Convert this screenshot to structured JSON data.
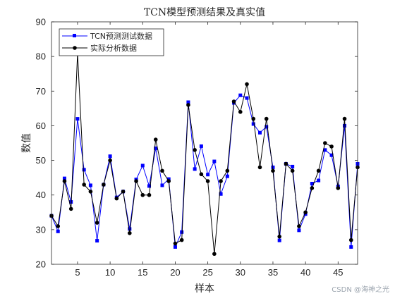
{
  "chart_data": {
    "type": "line",
    "title": "TCN模型预测结果及真实值",
    "xlabel": "样本",
    "ylabel": "数值",
    "xlim": [
      1,
      48
    ],
    "ylim": [
      20,
      90
    ],
    "xticks": [
      5,
      10,
      15,
      20,
      25,
      30,
      35,
      40,
      45
    ],
    "yticks": [
      20,
      30,
      40,
      50,
      60,
      70,
      80,
      90
    ],
    "legend_position": "top-left",
    "x": [
      1,
      2,
      3,
      4,
      5,
      6,
      7,
      8,
      9,
      10,
      11,
      12,
      13,
      14,
      15,
      16,
      17,
      18,
      19,
      20,
      21,
      22,
      23,
      24,
      25,
      26,
      27,
      28,
      29,
      30,
      31,
      32,
      33,
      34,
      35,
      36,
      37,
      38,
      39,
      40,
      41,
      42,
      43,
      44,
      45,
      46,
      47,
      48
    ],
    "series": [
      {
        "name": "TCN预测测试数据",
        "color": "#0000ff",
        "marker": "square",
        "values": [
          34,
          29.5,
          44.8,
          38,
          62,
          47.3,
          42.8,
          26.8,
          43,
          51.2,
          39.3,
          41,
          30.2,
          44.5,
          48.5,
          42.6,
          53.5,
          42.8,
          44.6,
          25,
          29.3,
          66.8,
          47.5,
          54.1,
          45.9,
          49.7,
          40.3,
          45.4,
          66.6,
          68.8,
          68,
          60.5,
          58,
          59.7,
          48,
          26.9,
          49,
          48.2,
          29.8,
          34.5,
          43.3,
          44.2,
          53,
          51.5,
          42.5,
          60,
          25,
          49
        ]
      },
      {
        "name": "实际分析数据",
        "color": "#000000",
        "marker": "circle",
        "values": [
          34,
          31,
          44,
          36,
          81,
          43,
          41,
          32,
          43,
          50,
          39,
          41,
          29,
          44,
          40,
          40,
          56,
          47,
          44,
          26,
          27,
          66,
          53,
          46,
          44,
          23,
          44,
          47,
          67,
          64,
          72,
          62,
          48,
          62,
          47,
          28,
          49,
          47,
          31,
          35,
          42,
          47,
          55,
          54,
          42,
          62,
          27,
          48
        ]
      }
    ]
  },
  "watermark": "CSDN @海神之光"
}
